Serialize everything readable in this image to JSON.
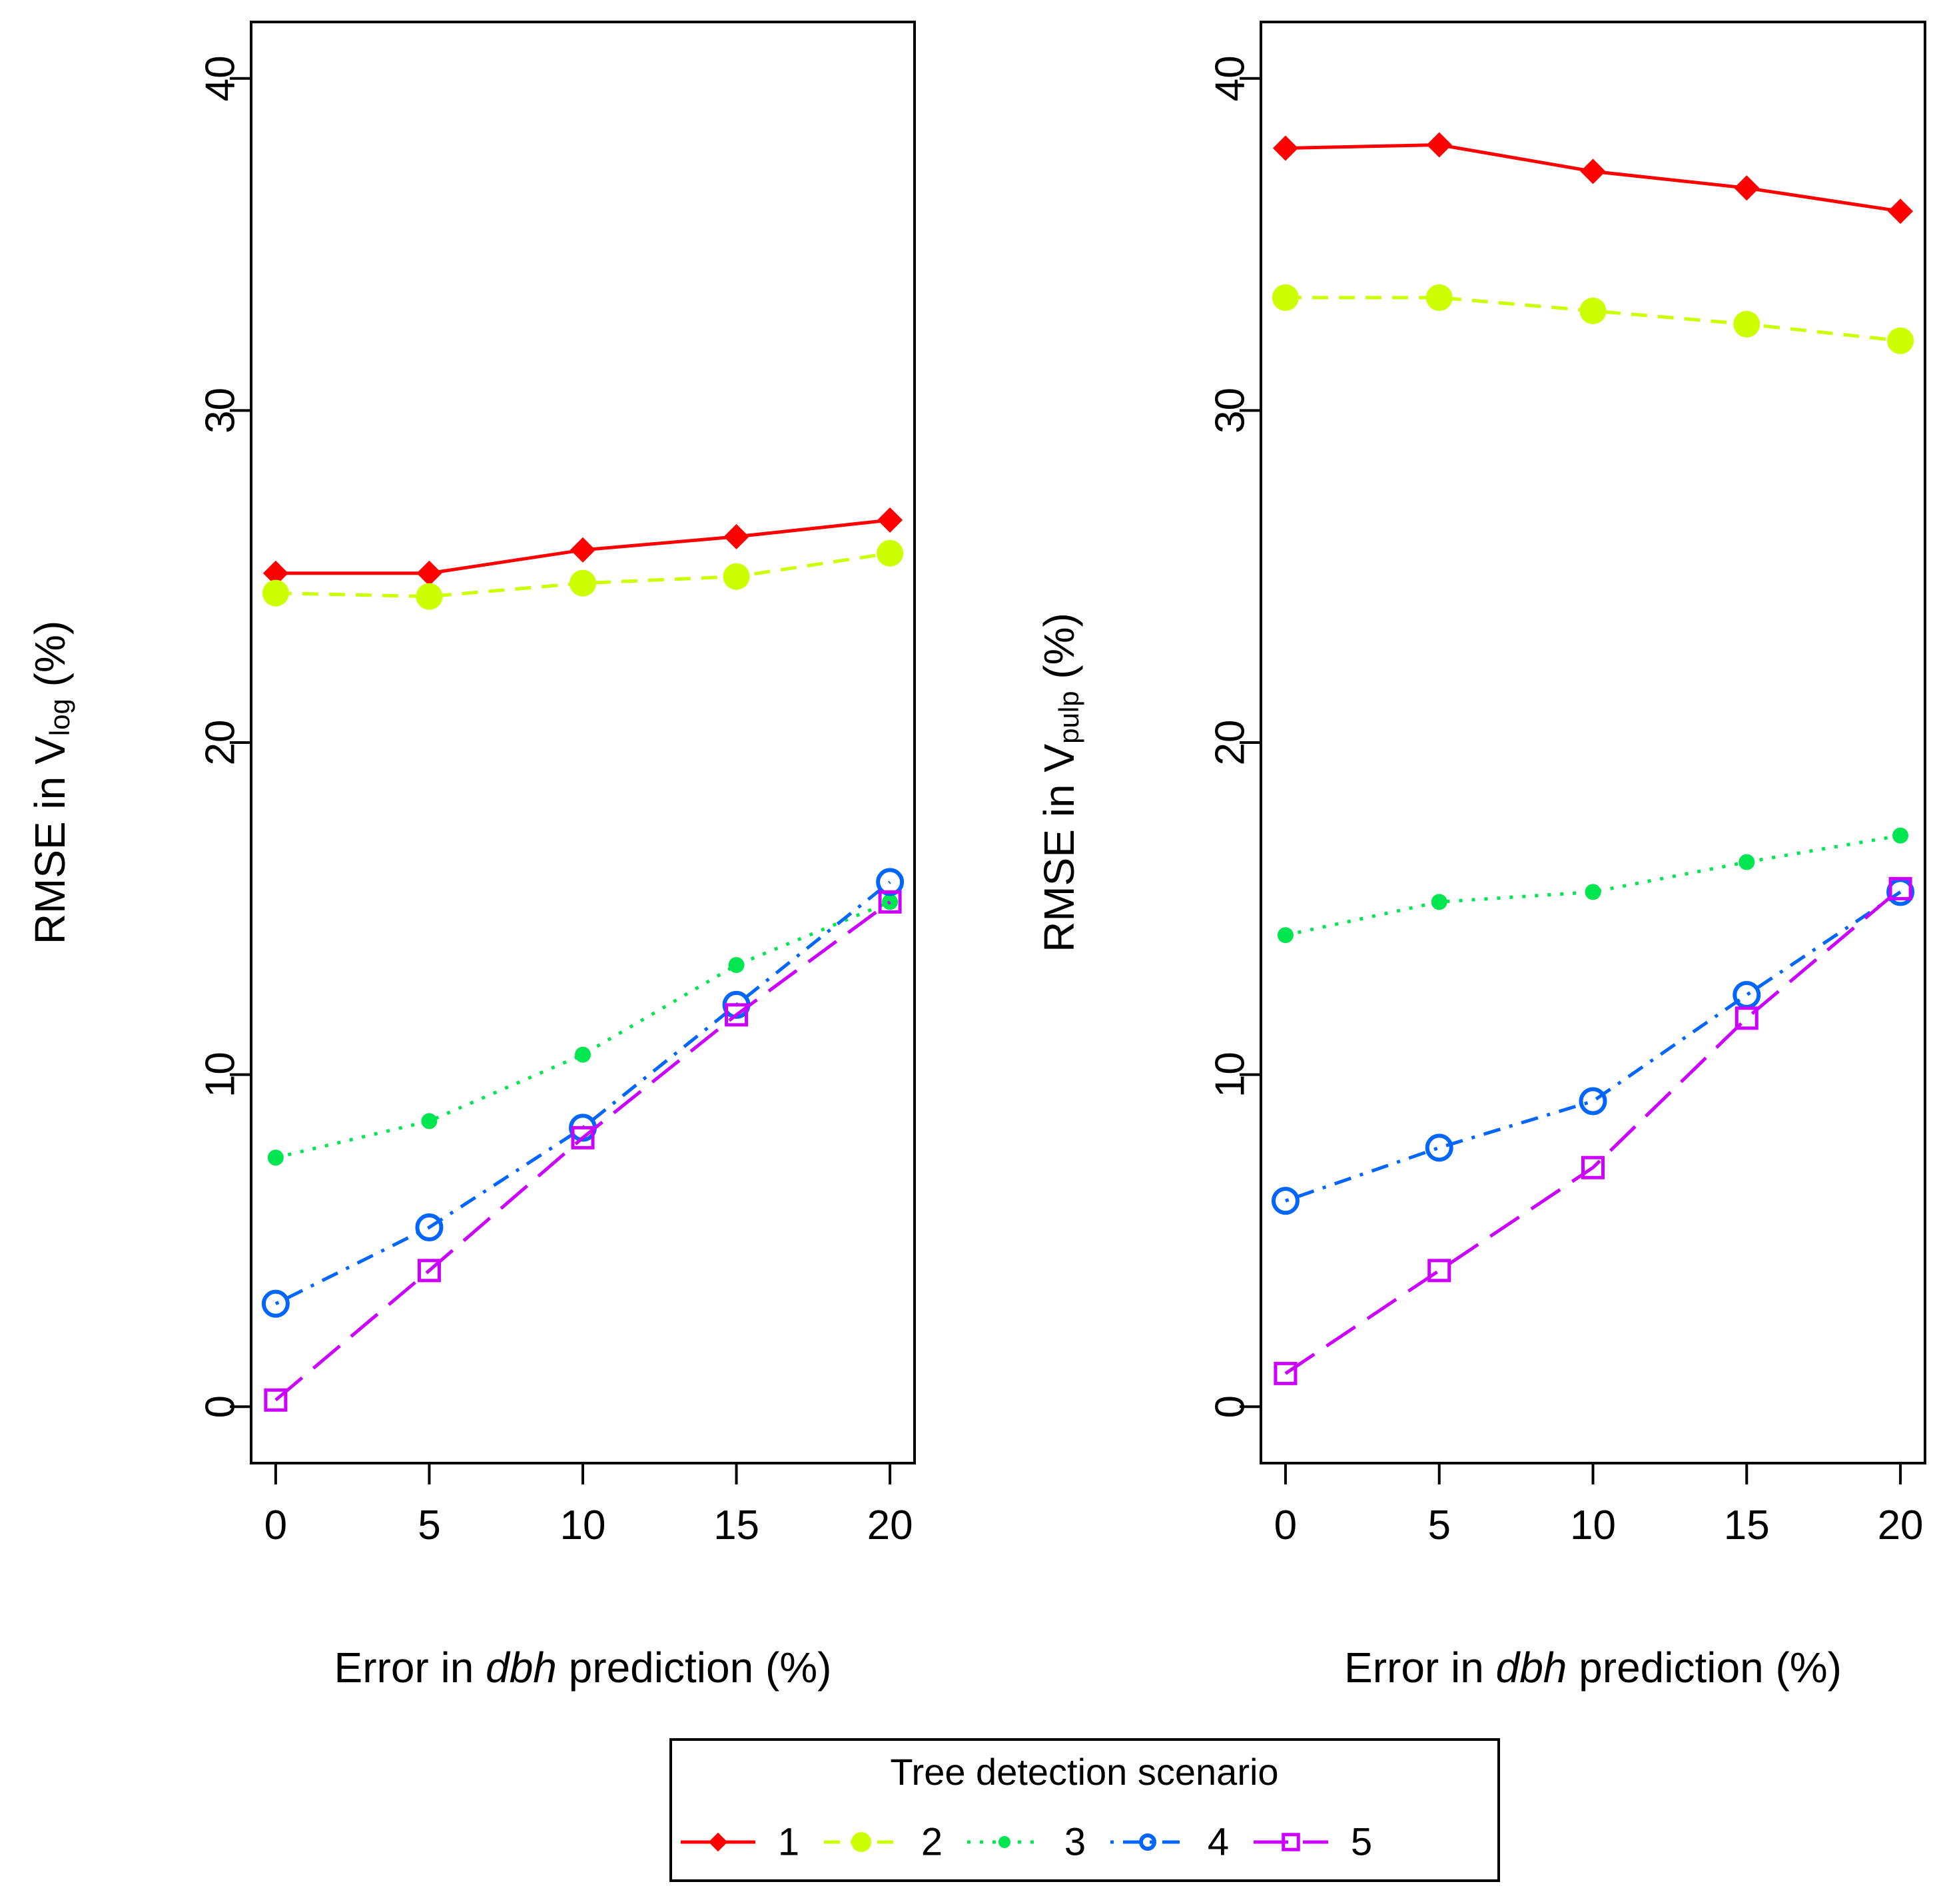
{
  "chart_data": [
    {
      "type": "line",
      "panel": "left",
      "title": "",
      "xlabel_parts": [
        "Error in ",
        "dbh",
        " prediction (%)"
      ],
      "ylabel_parts": [
        "RMSE in V",
        "log",
        " (%)"
      ],
      "x": [
        0,
        5,
        10,
        15,
        20
      ],
      "xticks": [
        "0",
        "5",
        "10",
        "15",
        "20"
      ],
      "yticks": [
        "0",
        "10",
        "20",
        "30",
        "40"
      ],
      "xlim": [
        -0.8,
        20.8
      ],
      "ylim": [
        -1.7,
        41.7
      ],
      "series": [
        {
          "name": "1",
          "values": [
            25.1,
            25.1,
            25.8,
            26.2,
            26.7
          ]
        },
        {
          "name": "2",
          "values": [
            24.5,
            24.4,
            24.8,
            25.0,
            25.7
          ]
        },
        {
          "name": "3",
          "values": [
            7.5,
            8.6,
            10.6,
            13.3,
            15.2
          ]
        },
        {
          "name": "4",
          "values": [
            3.1,
            5.4,
            8.4,
            12.1,
            15.8
          ]
        },
        {
          "name": "5",
          "values": [
            0.2,
            4.1,
            8.1,
            11.8,
            15.2
          ]
        }
      ]
    },
    {
      "type": "line",
      "panel": "right",
      "title": "",
      "xlabel_parts": [
        "Error in ",
        "dbh",
        " prediction (%)"
      ],
      "ylabel_parts": [
        "RMSE in V",
        "pulp",
        " (%)"
      ],
      "x": [
        0,
        5,
        10,
        15,
        20
      ],
      "xticks": [
        "0",
        "5",
        "10",
        "15",
        "20"
      ],
      "yticks": [
        "0",
        "10",
        "20",
        "30",
        "40"
      ],
      "xlim": [
        -0.8,
        20.8
      ],
      "ylim": [
        -1.7,
        41.7
      ],
      "series": [
        {
          "name": "1",
          "values": [
            37.9,
            38.0,
            37.2,
            36.7,
            36.0
          ]
        },
        {
          "name": "2",
          "values": [
            33.4,
            33.4,
            33.0,
            32.6,
            32.1
          ]
        },
        {
          "name": "3",
          "values": [
            14.2,
            15.2,
            15.5,
            16.4,
            17.2
          ]
        },
        {
          "name": "4",
          "values": [
            6.2,
            7.8,
            9.2,
            12.4,
            15.5
          ]
        },
        {
          "name": "5",
          "values": [
            1.0,
            4.1,
            7.2,
            11.7,
            15.6
          ]
        }
      ]
    }
  ],
  "legend": {
    "title": "Tree detection scenario",
    "items": [
      {
        "label": "1"
      },
      {
        "label": "2"
      },
      {
        "label": "3"
      },
      {
        "label": "4"
      },
      {
        "label": "5"
      }
    ]
  },
  "styles": [
    {
      "color": "#ff0000",
      "marker": "diamond",
      "dash": "",
      "marker_fill": "#ff0000"
    },
    {
      "color": "#ccff00",
      "marker": "circle-big",
      "dash": "24 16",
      "marker_fill": "#ccff00"
    },
    {
      "color": "#00e650",
      "marker": "dot",
      "dash": "5 14",
      "marker_fill": "#00e650"
    },
    {
      "color": "#0066ff",
      "marker": "open-circle",
      "dash": "5 14 26 14",
      "marker_fill": "none"
    },
    {
      "color": "#cc00ff",
      "marker": "open-square",
      "dash": "52 22",
      "marker_fill": "none"
    }
  ]
}
